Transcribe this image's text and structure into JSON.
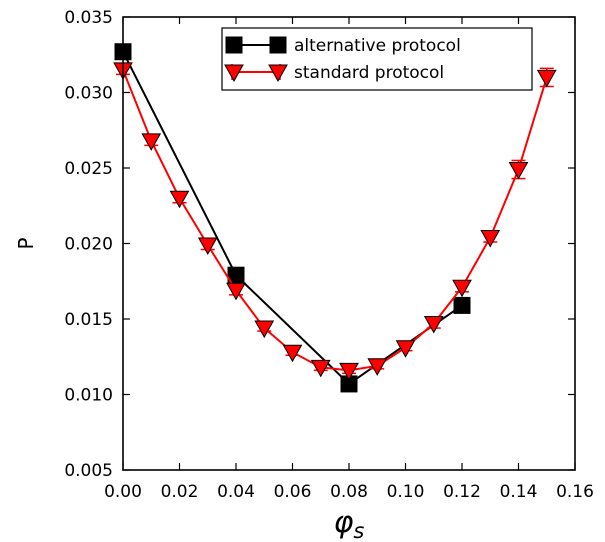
{
  "chart_data": {
    "type": "line",
    "xlabel": "φs",
    "ylabel": "P",
    "xlim": [
      0.0,
      0.16
    ],
    "ylim": [
      0.005,
      0.035
    ],
    "xticks": [
      "0.00",
      "0.02",
      "0.04",
      "0.06",
      "0.08",
      "0.10",
      "0.12",
      "0.14",
      "0.16"
    ],
    "yticks": [
      "0.005",
      "0.010",
      "0.015",
      "0.020",
      "0.025",
      "0.030",
      "0.035"
    ],
    "grid": false,
    "legend_position": "top",
    "series": [
      {
        "name": "alternative protocol",
        "color": "#000000",
        "marker": "square",
        "x": [
          0.0,
          0.04,
          0.08,
          0.12
        ],
        "y": [
          0.0327,
          0.0179,
          0.0107,
          0.0159
        ],
        "err": [
          0.0003,
          0.0003,
          0.0004,
          0.0004
        ]
      },
      {
        "name": "standard protocol",
        "color": "#ff0000",
        "marker": "triangle-down",
        "x": [
          0.0,
          0.01,
          0.02,
          0.03,
          0.04,
          0.05,
          0.06,
          0.07,
          0.08,
          0.09,
          0.1,
          0.11,
          0.12,
          0.13,
          0.14,
          0.15
        ],
        "y": [
          0.0315,
          0.0268,
          0.023,
          0.0199,
          0.0169,
          0.0144,
          0.0128,
          0.0118,
          0.0116,
          0.0119,
          0.0131,
          0.0147,
          0.0171,
          0.0204,
          0.0249,
          0.031
        ],
        "err": [
          0.0003,
          0.0003,
          0.0003,
          0.0003,
          0.0003,
          0.0002,
          0.0002,
          0.0002,
          0.0002,
          0.0002,
          0.0002,
          0.0003,
          0.0003,
          0.0003,
          0.0006,
          0.0006
        ]
      }
    ]
  }
}
